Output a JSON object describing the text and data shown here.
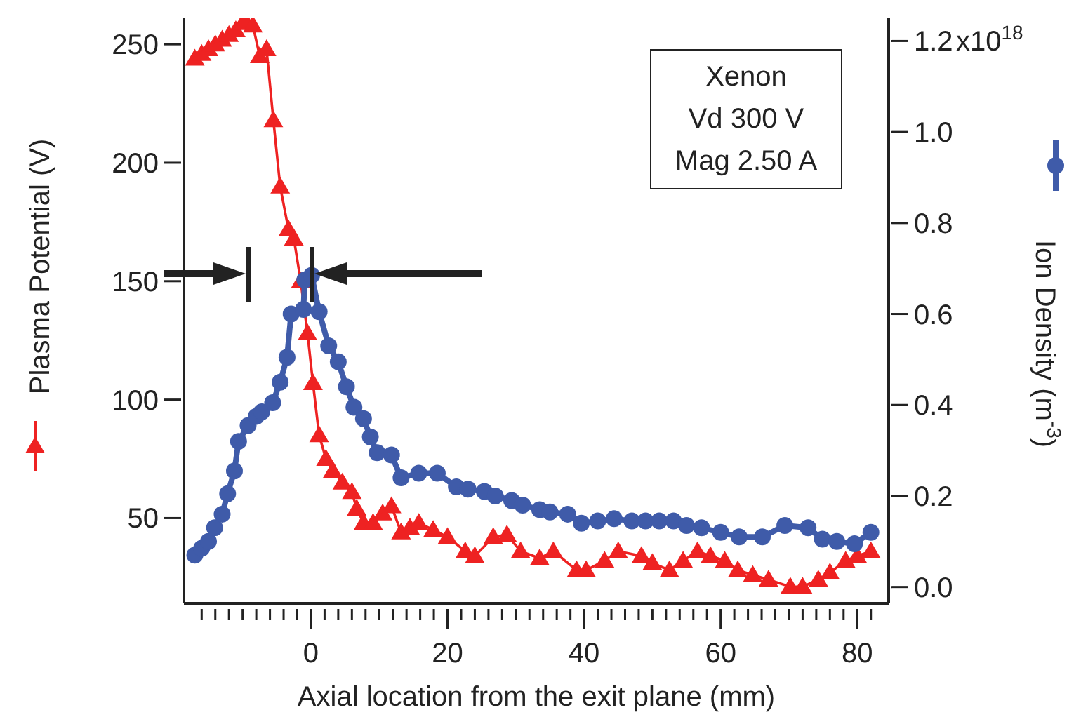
{
  "chart_data": {
    "type": "line",
    "xlabel": "Axial location from the exit plane (mm)",
    "ylabel": "Plasma Potential (V)",
    "y2label": "Ion Density (m$^{-3}$)",
    "annotations": [
      "Xenon",
      "Vd 300 V",
      "Mag 2.50 A",
      "x10$^{18}$"
    ],
    "xlim": [
      -18.6,
      84.6
    ],
    "xticks": [
      {
        "value": -16,
        "label": null
      },
      {
        "value": -14,
        "label": null
      },
      {
        "value": -12,
        "label": null
      },
      {
        "value": -10,
        "label": null
      },
      {
        "value": -8,
        "label": null
      },
      {
        "value": -6,
        "label": null
      },
      {
        "value": -4,
        "label": null
      },
      {
        "value": -2,
        "label": null
      },
      0,
      {
        "value": 2,
        "label": null
      },
      {
        "value": 4,
        "label": null
      },
      {
        "value": 6,
        "label": null
      },
      {
        "value": 8,
        "label": null
      },
      {
        "value": 10,
        "label": null
      },
      {
        "value": 12,
        "label": null
      },
      {
        "value": 14,
        "label": null
      },
      {
        "value": 16,
        "label": null
      },
      {
        "value": 18,
        "label": null
      },
      20,
      {
        "value": 22,
        "label": null
      },
      {
        "value": 24,
        "label": null
      },
      {
        "value": 26,
        "label": null
      },
      {
        "value": 28,
        "label": null
      },
      {
        "value": 30,
        "label": null
      },
      {
        "value": 32,
        "label": null
      },
      {
        "value": 34,
        "label": null
      },
      {
        "value": 36,
        "label": null
      },
      {
        "value": 38,
        "label": null
      },
      40,
      {
        "value": 42,
        "label": null
      },
      {
        "value": 44,
        "label": null
      },
      {
        "value": 46,
        "label": null
      },
      {
        "value": 48,
        "label": null
      },
      {
        "value": 50,
        "label": null
      },
      {
        "value": 52,
        "label": null
      },
      {
        "value": 54,
        "label": null
      },
      {
        "value": 56,
        "label": null
      },
      {
        "value": 58,
        "label": null
      },
      60,
      {
        "value": 62,
        "label": null
      },
      {
        "value": 64,
        "label": null
      },
      {
        "value": 66,
        "label": null
      },
      {
        "value": 68,
        "label": null
      },
      {
        "value": 70,
        "label": null
      },
      {
        "value": 72,
        "label": null
      },
      {
        "value": 74,
        "label": null
      },
      {
        "value": 76,
        "label": null
      },
      {
        "value": 78,
        "label": null
      },
      80,
      {
        "value": 82,
        "label": null
      }
    ],
    "ylim": [
      14,
      261
    ],
    "yticks": [
      50,
      100,
      150,
      200,
      250
    ],
    "y2lim": [
      -0.036,
      1.25
    ],
    "y2ticks": [
      {
        "value": 0,
        "label": "0.0"
      },
      0.2,
      0.4,
      0.6,
      0.8,
      {
        "value": 1,
        "label": "1.0"
      },
      1.2
    ],
    "grid": false,
    "series": [
      {
        "color": "#ee2222",
        "marker": "triangle",
        "x": [
          -17,
          -16,
          -15,
          -14,
          -13,
          -12,
          -11,
          -10,
          -9.6,
          -8.5,
          -7.5,
          -6.5,
          -5.5,
          -4.5,
          -3.3,
          -2.5,
          -1.5,
          -0.5,
          0.3,
          1.2,
          2.2,
          3.2,
          4.6,
          6,
          6.7,
          7.7,
          9.1,
          10.5,
          11.8,
          13.2,
          14.5,
          15.8,
          17.9,
          20,
          22.6,
          24,
          26.7,
          28.7,
          30.7,
          33.5,
          35.5,
          38.9,
          40.3,
          43,
          45,
          48.4,
          50,
          52.5,
          54.5,
          56.6,
          58.5,
          60.6,
          62.5,
          64.7,
          67,
          70.2,
          72,
          74.3,
          76,
          78.3,
          80,
          82
        ],
        "values": [
          244,
          246,
          248,
          250,
          252,
          254,
          256,
          259,
          260,
          258,
          245,
          248,
          218,
          190,
          172,
          168,
          150,
          128,
          107,
          85,
          75,
          70,
          65,
          61,
          54,
          48,
          48,
          52,
          55,
          44,
          46,
          48,
          45,
          42,
          36,
          34,
          42,
          43,
          36,
          33,
          36,
          28,
          28,
          32,
          36,
          34,
          31,
          28,
          32,
          36,
          34,
          32,
          28,
          26,
          24,
          21,
          21,
          24,
          27,
          32,
          34,
          36
        ]
      },
      {
        "color": "#3f5ba9",
        "marker": "circle",
        "axis": "y2",
        "x": [
          -17,
          -16,
          -15,
          -14.1,
          -13,
          -12.2,
          -11.2,
          -10.6,
          -9.2,
          -8,
          -7.2,
          -5.6,
          -4.5,
          -3.5,
          -2.9,
          -1.1,
          -0.9,
          0.1,
          1.2,
          2.6,
          4,
          5.2,
          6.3,
          7.7,
          8.7,
          9.7,
          11.8,
          13.2,
          15.8,
          18.5,
          21.3,
          23,
          25.4,
          27,
          29.4,
          31,
          33.5,
          35,
          37.6,
          39.6,
          42,
          44.4,
          47,
          49,
          51,
          53.1,
          55,
          57.2,
          60,
          62.7,
          66.1,
          69.4,
          72.8,
          74.9,
          77,
          79.6,
          82
        ],
        "values": [
          0.07,
          0.085,
          0.1,
          0.13,
          0.16,
          0.205,
          0.255,
          0.32,
          0.355,
          0.375,
          0.385,
          0.405,
          0.45,
          0.505,
          0.6,
          0.61,
          0.675,
          0.685,
          0.605,
          0.53,
          0.495,
          0.44,
          0.395,
          0.37,
          0.33,
          0.295,
          0.29,
          0.24,
          0.25,
          0.25,
          0.22,
          0.215,
          0.21,
          0.2,
          0.19,
          0.18,
          0.17,
          0.165,
          0.16,
          0.14,
          0.145,
          0.15,
          0.145,
          0.145,
          0.145,
          0.145,
          0.135,
          0.13,
          0.12,
          0.11,
          0.11,
          0.135,
          0.13,
          0.105,
          0.1,
          0.095,
          0.12
        ]
      }
    ]
  }
}
